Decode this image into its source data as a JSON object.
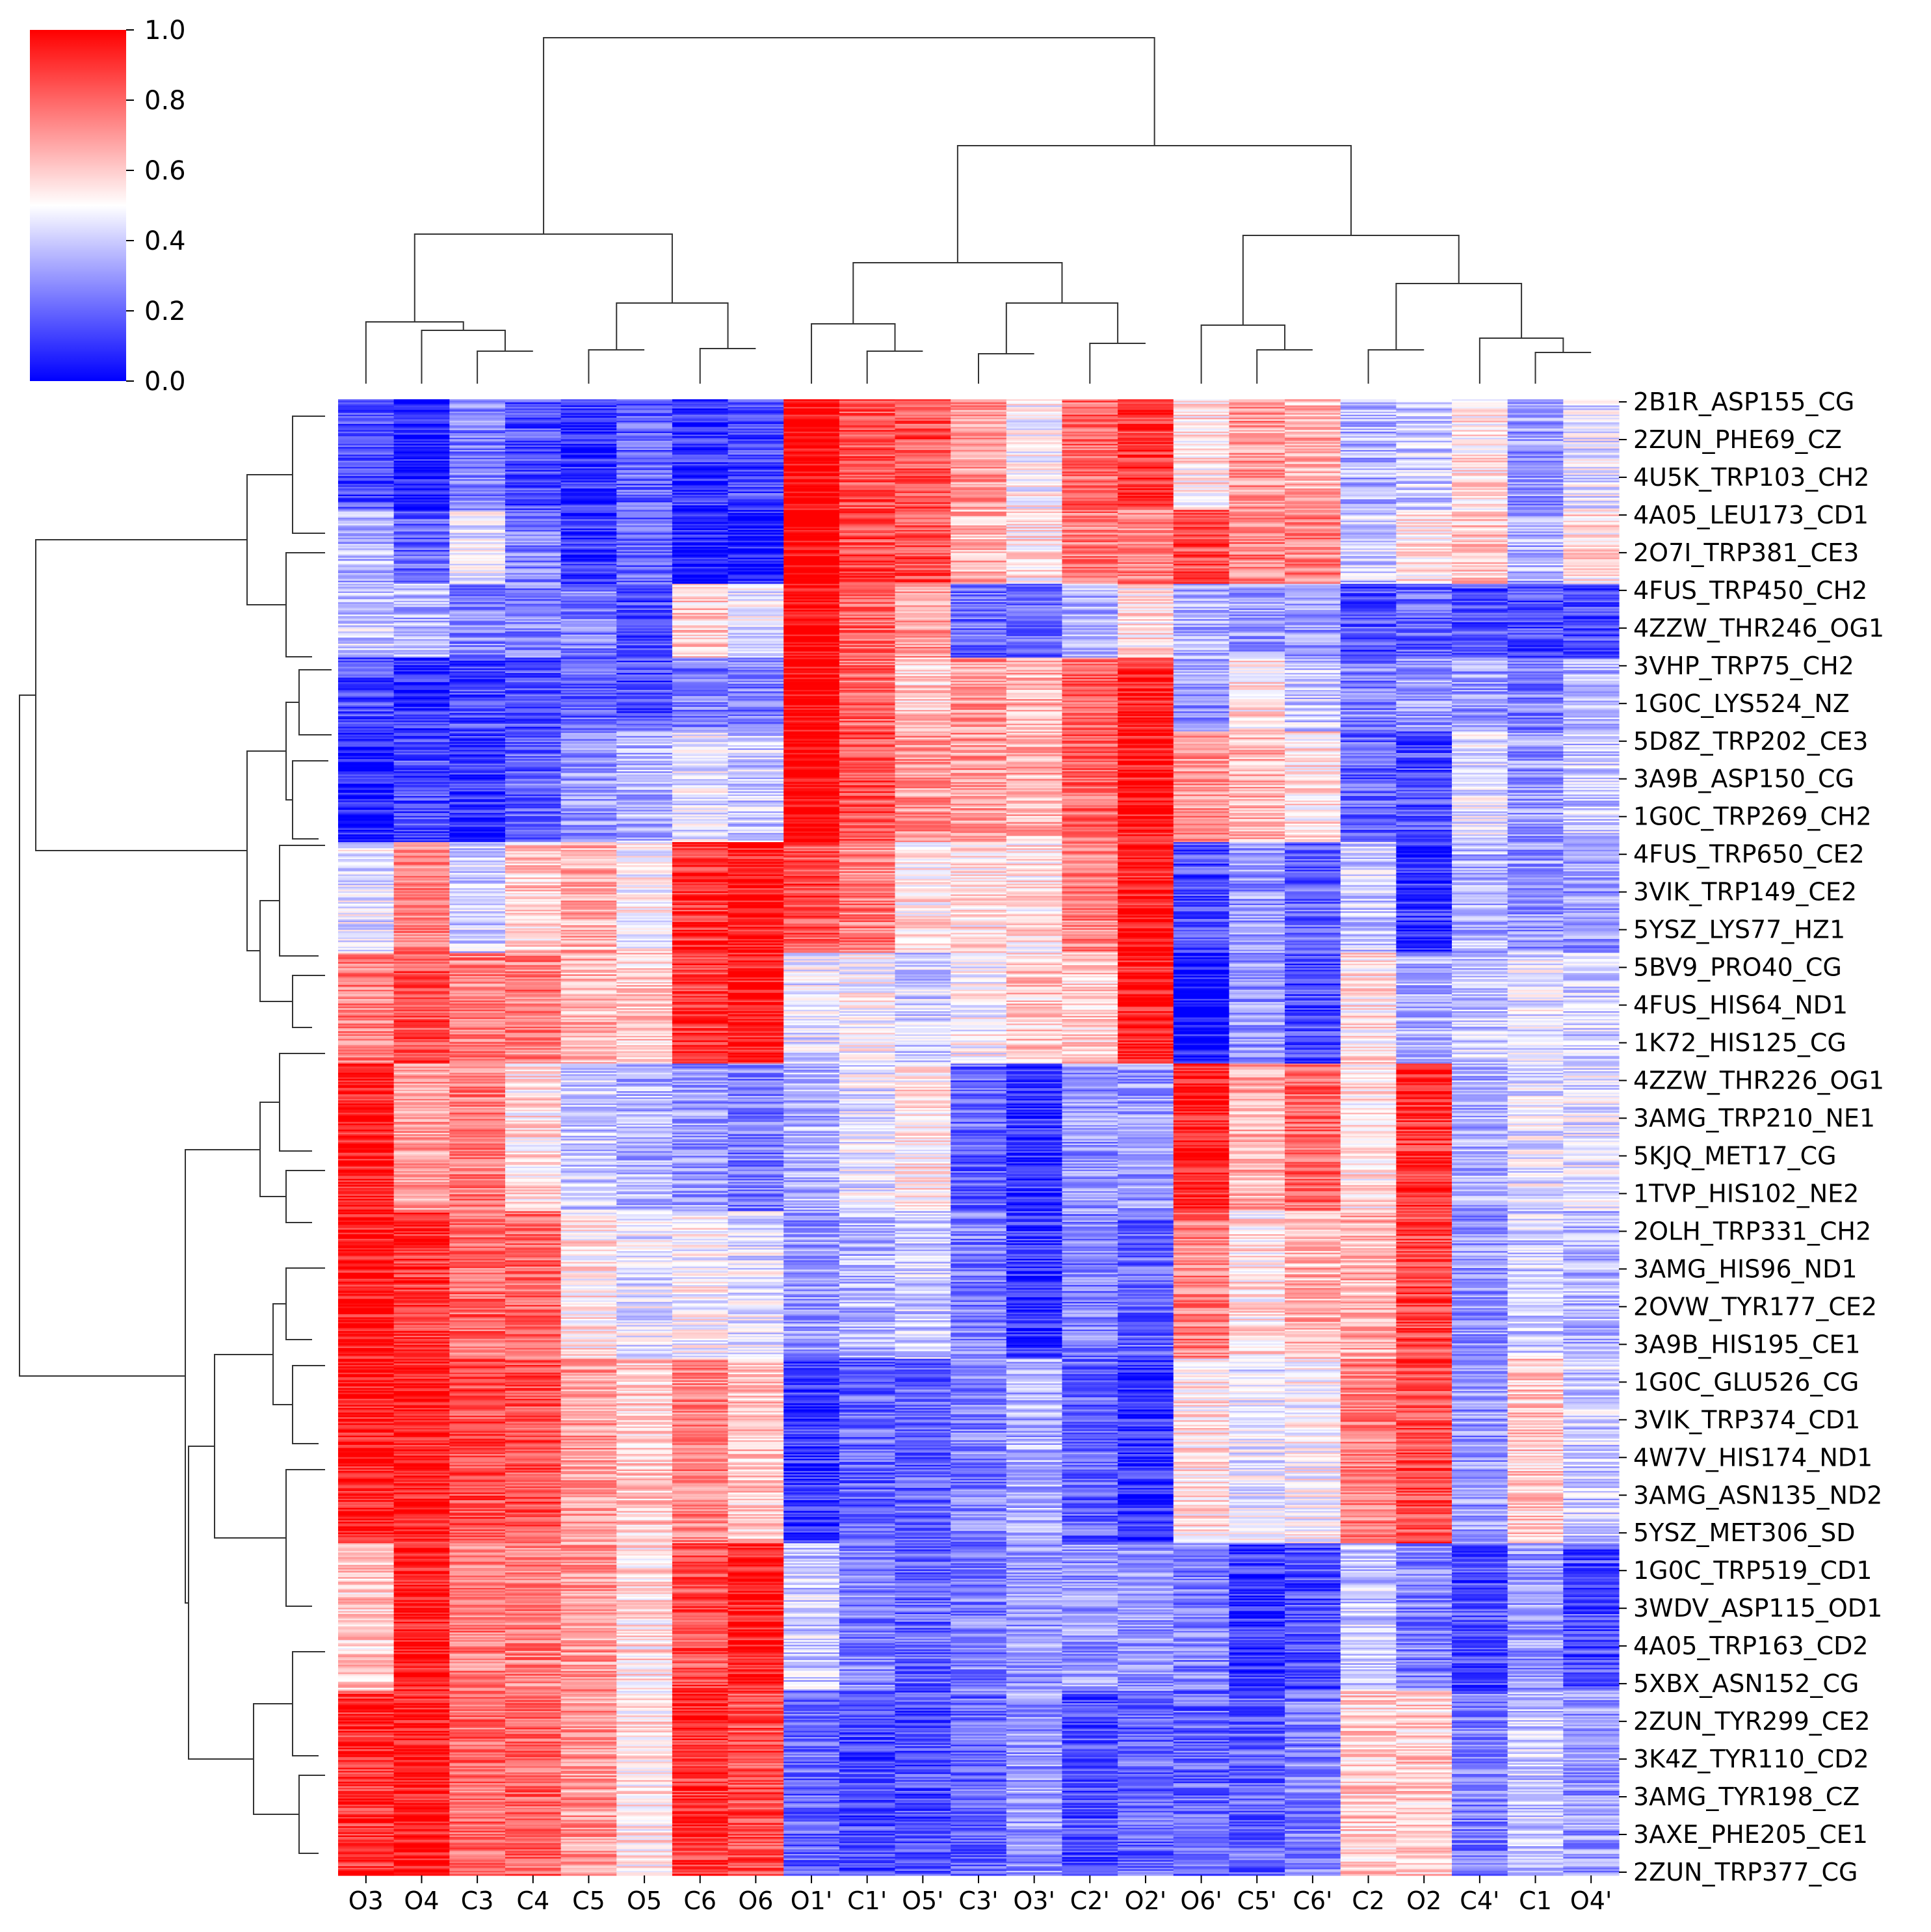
{
  "chart_data": {
    "type": "heatmap",
    "title": "",
    "xlabel": "",
    "ylabel": "",
    "columns": [
      "O3",
      "O4",
      "C3",
      "C4",
      "C5",
      "O5",
      "C6",
      "O6",
      "O1'",
      "C1'",
      "O5'",
      "C3'",
      "O3'",
      "C2'",
      "O2'",
      "O6'",
      "C5'",
      "C6'",
      "C2",
      "O2",
      "C4'",
      "C1",
      "O4'"
    ],
    "row_labels": [
      "2B1R_ASP155_CG",
      "2ZUN_PHE69_CZ",
      "4U5K_TRP103_CH2",
      "4A05_LEU173_CD1",
      "2O7I_TRP381_CE3",
      "4FUS_TRP450_CH2",
      "4ZZW_THR246_OG1",
      "3VHP_TRP75_CH2",
      "1G0C_LYS524_NZ",
      "5D8Z_TRP202_CE3",
      "3A9B_ASP150_CG",
      "1G0C_TRP269_CH2",
      "4FUS_TRP650_CE2",
      "3VIK_TRP149_CE2",
      "5YSZ_LYS77_HZ1",
      "5BV9_PRO40_CG",
      "4FUS_HIS64_ND1",
      "1K72_HIS125_CG",
      "4ZZW_THR226_OG1",
      "3AMG_TRP210_NE1",
      "5KJQ_MET17_CG",
      "1TVP_HIS102_NE2",
      "2OLH_TRP331_CH2",
      "3AMG_HIS96_ND1",
      "2OVW_TYR177_CE2",
      "3A9B_HIS195_CE1",
      "1G0C_GLU526_CG",
      "3VIK_TRP374_CD1",
      "4W7V_HIS174_ND1",
      "3AMG_ASN135_ND2",
      "5YSZ_MET306_SD",
      "1G0C_TRP519_CD1",
      "3WDV_ASP115_OD1",
      "4A05_TRP163_CD2",
      "5XBX_ASN152_CG",
      "2ZUN_TYR299_CE2",
      "3K4Z_TYR110_CD2",
      "3AMG_TYR198_CZ",
      "3AXE_PHE205_CE1",
      "2ZUN_TRP377_CG"
    ],
    "block_values": [
      [
        0.15,
        0.05,
        0.25,
        0.15,
        0.1,
        0.2,
        0.1,
        0.15,
        1.0,
        0.85,
        0.85,
        0.7,
        0.5,
        0.8,
        0.9,
        0.55,
        0.7,
        0.65,
        0.35,
        0.4,
        0.55,
        0.3,
        0.45
      ],
      [
        0.35,
        0.2,
        0.45,
        0.25,
        0.1,
        0.2,
        0.05,
        0.05,
        1.0,
        0.85,
        0.85,
        0.65,
        0.55,
        0.75,
        0.75,
        0.85,
        0.75,
        0.75,
        0.4,
        0.55,
        0.6,
        0.35,
        0.55
      ],
      [
        0.4,
        0.35,
        0.25,
        0.25,
        0.25,
        0.15,
        0.6,
        0.45,
        1.0,
        0.8,
        0.7,
        0.2,
        0.2,
        0.35,
        0.55,
        0.35,
        0.3,
        0.3,
        0.15,
        0.2,
        0.15,
        0.15,
        0.15
      ],
      [
        0.15,
        0.1,
        0.15,
        0.15,
        0.2,
        0.15,
        0.25,
        0.25,
        1.0,
        0.8,
        0.6,
        0.7,
        0.65,
        0.8,
        0.95,
        0.3,
        0.55,
        0.4,
        0.25,
        0.3,
        0.3,
        0.25,
        0.35
      ],
      [
        0.05,
        0.15,
        0.1,
        0.2,
        0.3,
        0.35,
        0.45,
        0.4,
        1.0,
        0.85,
        0.7,
        0.7,
        0.65,
        0.8,
        0.95,
        0.7,
        0.65,
        0.55,
        0.2,
        0.15,
        0.45,
        0.3,
        0.4
      ],
      [
        0.45,
        0.75,
        0.4,
        0.6,
        0.65,
        0.5,
        0.9,
        0.95,
        0.85,
        0.75,
        0.55,
        0.55,
        0.55,
        0.75,
        0.95,
        0.15,
        0.3,
        0.2,
        0.4,
        0.1,
        0.35,
        0.3,
        0.3
      ],
      [
        0.75,
        0.85,
        0.75,
        0.75,
        0.65,
        0.6,
        0.9,
        0.95,
        0.45,
        0.5,
        0.4,
        0.5,
        0.6,
        0.6,
        0.95,
        0.05,
        0.3,
        0.15,
        0.55,
        0.35,
        0.4,
        0.45,
        0.4
      ],
      [
        0.95,
        0.7,
        0.75,
        0.55,
        0.4,
        0.35,
        0.3,
        0.25,
        0.35,
        0.45,
        0.55,
        0.2,
        0.1,
        0.3,
        0.3,
        0.95,
        0.65,
        0.8,
        0.55,
        0.9,
        0.35,
        0.45,
        0.45
      ],
      [
        0.95,
        0.9,
        0.8,
        0.8,
        0.55,
        0.45,
        0.5,
        0.45,
        0.3,
        0.35,
        0.4,
        0.25,
        0.1,
        0.25,
        0.2,
        0.75,
        0.55,
        0.65,
        0.65,
        0.85,
        0.3,
        0.4,
        0.35
      ],
      [
        0.95,
        0.95,
        0.85,
        0.85,
        0.7,
        0.6,
        0.75,
        0.6,
        0.1,
        0.2,
        0.2,
        0.25,
        0.35,
        0.2,
        0.1,
        0.55,
        0.45,
        0.5,
        0.75,
        0.85,
        0.3,
        0.6,
        0.4
      ],
      [
        0.6,
        0.95,
        0.75,
        0.75,
        0.7,
        0.55,
        0.85,
        0.95,
        0.4,
        0.25,
        0.2,
        0.25,
        0.3,
        0.3,
        0.3,
        0.25,
        0.1,
        0.15,
        0.4,
        0.25,
        0.15,
        0.3,
        0.15
      ],
      [
        0.9,
        0.95,
        0.8,
        0.8,
        0.7,
        0.55,
        0.9,
        0.85,
        0.2,
        0.15,
        0.15,
        0.2,
        0.3,
        0.15,
        0.2,
        0.2,
        0.2,
        0.25,
        0.6,
        0.6,
        0.25,
        0.4,
        0.3
      ]
    ],
    "block_row_spans": [
      3,
      2,
      2,
      2,
      3,
      3,
      3,
      4,
      4,
      5,
      4,
      5
    ],
    "colorbar": {
      "colormap": "bwr",
      "min": 0.0,
      "max": 1.0,
      "ticks": [
        "0.0",
        "0.2",
        "0.4",
        "0.6",
        "0.8",
        "1.0"
      ]
    },
    "grid": false,
    "dendrograms": [
      "top",
      "left"
    ]
  },
  "colors": {
    "low": "#0000ff",
    "mid": "#ffffff",
    "high": "#ff0000"
  }
}
